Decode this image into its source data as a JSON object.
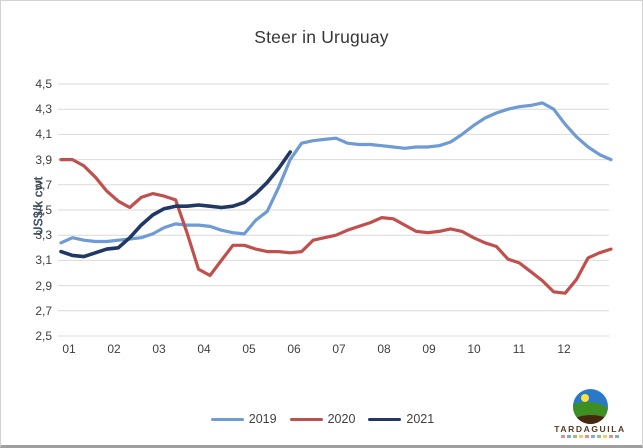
{
  "chart_data": {
    "type": "line",
    "title": "Steer in Uruguay",
    "ylabel": "US$/k cwt",
    "x_tick_labels": [
      "01",
      "02",
      "03",
      "04",
      "05",
      "06",
      "07",
      "08",
      "09",
      "10",
      "11",
      "12"
    ],
    "y_tick_labels": [
      "4,5",
      "4,3",
      "4,1",
      "3,9",
      "3,7",
      "3,5",
      "3,3",
      "3,1",
      "2,9",
      "2,7",
      "2,5"
    ],
    "ylim": [
      2.5,
      4.5
    ],
    "grid": "horizontal",
    "legend_position": "bottom-center",
    "x_unit": "weekly observations, months 01-12",
    "series": [
      {
        "name": "2019",
        "color": "#6e9bd4",
        "values": [
          3.24,
          3.28,
          3.26,
          3.25,
          3.25,
          3.26,
          3.27,
          3.28,
          3.31,
          3.36,
          3.39,
          3.38,
          3.38,
          3.37,
          3.34,
          3.32,
          3.31,
          3.42,
          3.49,
          3.68,
          3.9,
          4.03,
          4.05,
          4.06,
          4.07,
          4.03,
          4.02,
          4.02,
          4.01,
          4.0,
          3.99,
          4.0,
          4.0,
          4.01,
          4.04,
          4.1,
          4.17,
          4.23,
          4.27,
          4.3,
          4.32,
          4.33,
          4.35,
          4.3,
          4.18,
          4.08,
          4.0,
          3.94,
          3.9
        ]
      },
      {
        "name": "2020",
        "color": "#c0504d",
        "values": [
          3.9,
          3.9,
          3.85,
          3.76,
          3.65,
          3.57,
          3.52,
          3.6,
          3.63,
          3.61,
          3.58,
          3.32,
          3.03,
          2.98,
          3.1,
          3.22,
          3.22,
          3.19,
          3.17,
          3.17,
          3.16,
          3.17,
          3.26,
          3.28,
          3.3,
          3.34,
          3.37,
          3.4,
          3.44,
          3.43,
          3.38,
          3.33,
          3.32,
          3.33,
          3.35,
          3.33,
          3.28,
          3.24,
          3.21,
          3.11,
          3.08,
          3.01,
          2.94,
          2.85,
          2.84,
          2.95,
          3.12,
          3.16,
          3.19
        ]
      },
      {
        "name": "2021",
        "color": "#1f3864",
        "values": [
          3.17,
          3.14,
          3.13,
          3.16,
          3.19,
          3.2,
          3.28,
          3.38,
          3.46,
          3.51,
          3.53,
          3.53,
          3.54,
          3.53,
          3.52,
          3.53,
          3.56,
          3.63,
          3.72,
          3.83,
          3.96
        ]
      }
    ]
  },
  "logo": {
    "text": "TARDAGUILA"
  }
}
